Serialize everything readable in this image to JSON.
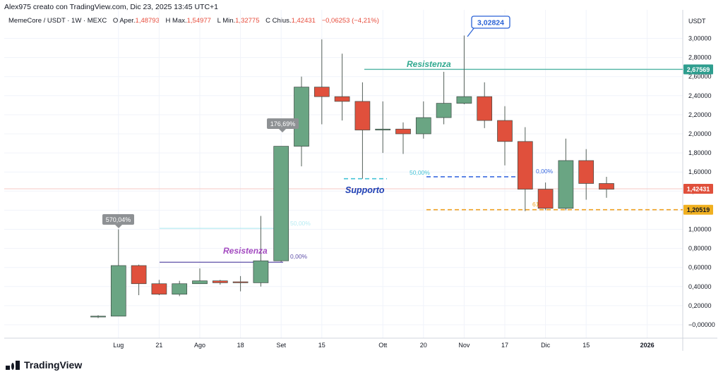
{
  "header": {
    "title": "Alex975 creato con TradingView.com, Dic 23, 2025 13:45 UTC+1"
  },
  "ohlc": {
    "symbol": "MemeCore / USDT · 1W · MEXC",
    "o_label": "O",
    "o_text": "Aper.",
    "o_val": "1,48793",
    "h_label": "H",
    "h_text": "Max.",
    "h_val": "1,54977",
    "l_label": "L",
    "l_text": "Min.",
    "l_val": "1,32775",
    "c_label": "C",
    "c_text": "Chius.",
    "c_val": "1,42431",
    "chg": "−0,06253 (−4,21%)"
  },
  "footer": {
    "brand": "TradingView"
  },
  "colors": {
    "up": "#6aa583",
    "down": "#e0503c",
    "resistance": "#4fb3a3",
    "support": "#1e3fb4",
    "resistance2": "#a34ac0",
    "fib": "#3b6be0",
    "fib2": "#f0a020"
  },
  "chart_data": {
    "type": "candlestick",
    "currency": "USDT",
    "ylim": [
      -0.1,
      3.2
    ],
    "yticks": [
      {
        "v": 0,
        "label": "−0,00000"
      },
      {
        "v": 0.2,
        "label": "0,20000"
      },
      {
        "v": 0.4,
        "label": "0,40000"
      },
      {
        "v": 0.6,
        "label": "0,60000"
      },
      {
        "v": 0.8,
        "label": "0,80000"
      },
      {
        "v": 1.0,
        "label": "1,00000"
      },
      {
        "v": 1.2,
        "label": "1,20000"
      },
      {
        "v": 1.4,
        "label": "1,40000"
      },
      {
        "v": 1.6,
        "label": "1,60000"
      },
      {
        "v": 1.8,
        "label": "1,80000"
      },
      {
        "v": 2.0,
        "label": "2,00000"
      },
      {
        "v": 2.2,
        "label": "2,20000"
      },
      {
        "v": 2.4,
        "label": "2,40000"
      },
      {
        "v": 2.6,
        "label": "2,60000"
      },
      {
        "v": 2.8,
        "label": "2,80000"
      },
      {
        "v": 3.0,
        "label": "3,00000"
      }
    ],
    "xticks": [
      {
        "i": 1,
        "label": "Lug"
      },
      {
        "i": 3,
        "label": "21"
      },
      {
        "i": 5,
        "label": "Ago"
      },
      {
        "i": 7,
        "label": "18"
      },
      {
        "i": 9,
        "label": "Set"
      },
      {
        "i": 11,
        "label": "15"
      },
      {
        "i": 14,
        "label": "Ott"
      },
      {
        "i": 16,
        "label": "20"
      },
      {
        "i": 18,
        "label": "Nov"
      },
      {
        "i": 20,
        "label": "17"
      },
      {
        "i": 22,
        "label": "Dic"
      },
      {
        "i": 24,
        "label": "15"
      },
      {
        "i": 27,
        "label": "2026"
      }
    ],
    "candles": [
      {
        "o": 0.09,
        "h": 0.1,
        "l": 0.07,
        "c": 0.09
      },
      {
        "o": 0.09,
        "h": 1.0,
        "l": 0.09,
        "c": 0.62
      },
      {
        "o": 0.62,
        "h": 0.63,
        "l": 0.31,
        "c": 0.43
      },
      {
        "o": 0.43,
        "h": 0.47,
        "l": 0.31,
        "c": 0.32
      },
      {
        "o": 0.32,
        "h": 0.46,
        "l": 0.3,
        "c": 0.43
      },
      {
        "o": 0.43,
        "h": 0.59,
        "l": 0.43,
        "c": 0.46
      },
      {
        "o": 0.46,
        "h": 0.47,
        "l": 0.42,
        "c": 0.44
      },
      {
        "o": 0.45,
        "h": 0.51,
        "l": 0.35,
        "c": 0.44
      },
      {
        "o": 0.44,
        "h": 1.14,
        "l": 0.4,
        "c": 0.67
      },
      {
        "o": 0.67,
        "h": 1.86,
        "l": 0.66,
        "c": 1.87
      },
      {
        "o": 1.87,
        "h": 2.6,
        "l": 1.66,
        "c": 2.49
      },
      {
        "o": 2.49,
        "h": 2.99,
        "l": 2.1,
        "c": 2.39
      },
      {
        "o": 2.39,
        "h": 2.84,
        "l": 2.14,
        "c": 2.34
      },
      {
        "o": 2.34,
        "h": 2.54,
        "l": 1.53,
        "c": 2.04
      },
      {
        "o": 2.04,
        "h": 2.34,
        "l": 1.8,
        "c": 2.05
      },
      {
        "o": 2.05,
        "h": 2.12,
        "l": 1.79,
        "c": 2.0
      },
      {
        "o": 2.0,
        "h": 2.34,
        "l": 1.95,
        "c": 2.17
      },
      {
        "o": 2.17,
        "h": 2.65,
        "l": 2.1,
        "c": 2.32
      },
      {
        "o": 2.32,
        "h": 3.03,
        "l": 2.31,
        "c": 2.39
      },
      {
        "o": 2.39,
        "h": 2.54,
        "l": 2.06,
        "c": 2.14
      },
      {
        "o": 2.14,
        "h": 2.29,
        "l": 1.67,
        "c": 1.92
      },
      {
        "o": 1.92,
        "h": 2.07,
        "l": 1.19,
        "c": 1.42
      },
      {
        "o": 1.42,
        "h": 1.49,
        "l": 1.2,
        "c": 1.22
      },
      {
        "o": 1.22,
        "h": 1.95,
        "l": 1.2,
        "c": 1.72
      },
      {
        "o": 1.72,
        "h": 1.84,
        "l": 1.31,
        "c": 1.48
      },
      {
        "o": 1.48,
        "h": 1.55,
        "l": 1.33,
        "c": 1.42
      }
    ],
    "price_labels": [
      {
        "v": 2.67569,
        "label": "2,67569",
        "color": "#2f9e8f"
      },
      {
        "v": 1.42431,
        "label": "1,42431",
        "color": "#e0503c"
      },
      {
        "v": 1.20519,
        "label": "1,20519",
        "color": "#f0b020"
      }
    ],
    "callouts": [
      {
        "label": "3,02824"
      },
      {
        "label": "570,04%"
      },
      {
        "label": "176,69%"
      }
    ],
    "annotations": {
      "resistance_top": "Resistenza",
      "resistance_low": "Resistenza",
      "support": "Supporto",
      "fib_50": "50,00%",
      "fib_0": "0,00%",
      "fib_50_low": "50,00%",
      "fib_0_low": "0,00%",
      "fib_61": "61"
    }
  }
}
